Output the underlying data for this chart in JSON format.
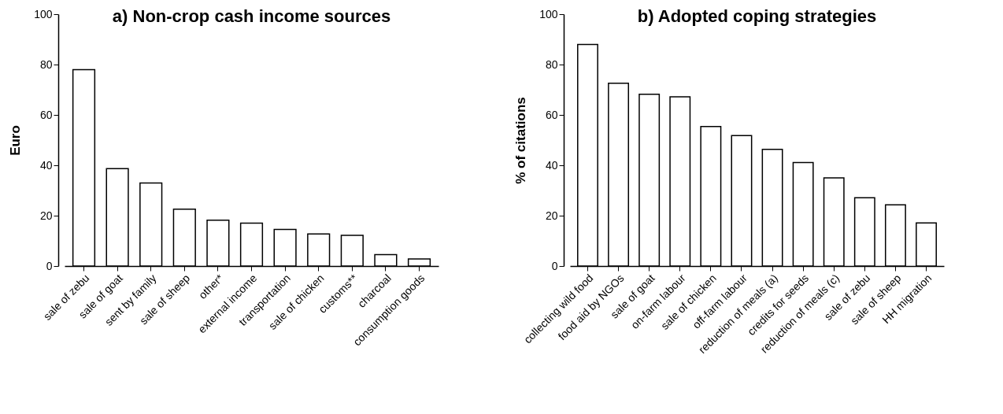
{
  "chart_data": [
    {
      "type": "bar",
      "title": "a) Non-crop cash income sources",
      "ylabel": "Euro",
      "categories": [
        "sale of zebu",
        "sale of goat",
        "sent by family",
        "sale of sheep",
        "other*",
        "external income",
        "transportation",
        "sale of chicken",
        "customs**",
        "charcoal",
        "consumption goods"
      ],
      "values": [
        78,
        38.7,
        33,
        22.6,
        18.2,
        17,
        14.5,
        12.7,
        12.2,
        4.5,
        2.8
      ],
      "color": "#ffffff",
      "ylim": [
        0,
        100
      ],
      "yticks": [
        0,
        20,
        40,
        60,
        80,
        100
      ],
      "grid": false
    },
    {
      "type": "bar",
      "title": "b) Adopted coping strategies",
      "ylabel": "% of citations",
      "categories": [
        "collecting wild food",
        "food aid by NGOs",
        "sale of goat",
        "on-farm labour",
        "sale of chicken",
        "off-farm labour",
        "reduction of meals (a)",
        "credits for seeds",
        "reduction of meals (c)",
        "sale of zebu",
        "sale of sheep",
        "HH migration"
      ],
      "values": [
        88,
        72.6,
        68.2,
        67.2,
        55.4,
        51.8,
        46.3,
        41.1,
        35,
        27.1,
        24.3,
        17.1
      ],
      "color": "#ffffff",
      "ylim": [
        0,
        100
      ],
      "yticks": [
        0,
        20,
        40,
        60,
        80,
        100
      ],
      "grid": false
    }
  ]
}
